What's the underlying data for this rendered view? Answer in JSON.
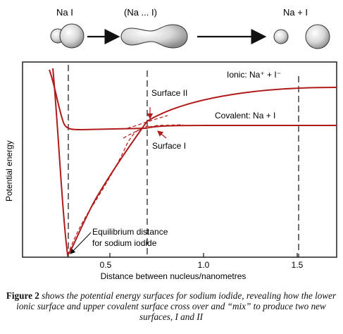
{
  "molecules": {
    "left_label": "Na   I",
    "middle_label": "(Na ... I)",
    "right_label": "Na + I"
  },
  "axes": {
    "y_label": "Potential energy",
    "x_label": "Distance between nucleus/nanometres",
    "x_ticks": [
      "0.5",
      "1.0",
      "1.5"
    ]
  },
  "annotations": {
    "ionic": "Ionic: Na⁺ + I⁻",
    "covalent": "Covalent: Na + I",
    "surface_2": "Surface II",
    "surface_1": "Surface I",
    "equilibrium_line1": "Equilibrium distance",
    "equilibrium_line2": "for sodium iodide"
  },
  "caption": {
    "figure_label": "Figure 2",
    "text": "shows the potential energy surfaces for sodium iodide, revealing how the lower ionic surface and upper covalent surface cross over and “mix” to produce two new surfaces, I and II"
  },
  "colors": {
    "curve": "#b01c1c",
    "dashed": "#b01c1c",
    "frame": "#111111"
  }
}
